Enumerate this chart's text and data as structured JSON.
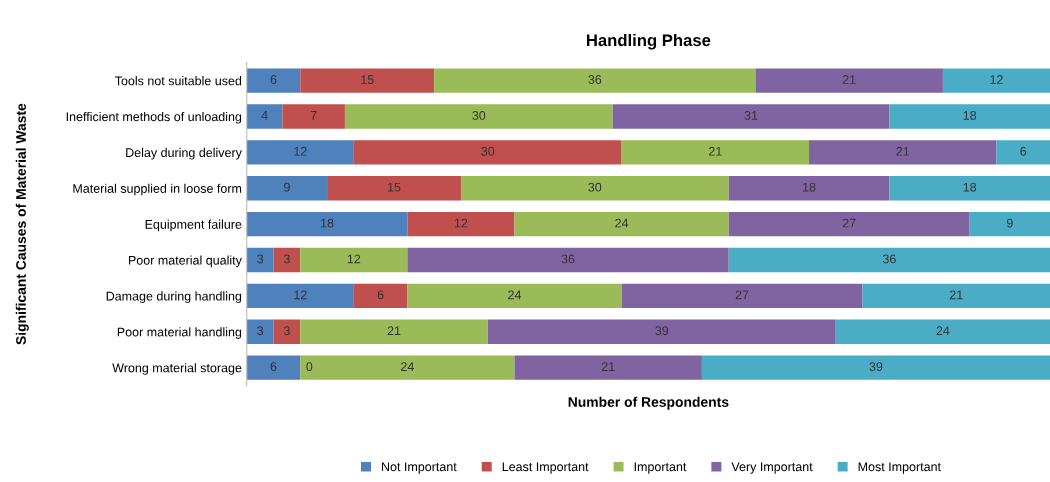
{
  "chart_data": {
    "type": "bar",
    "orientation": "horizontal",
    "stacked": true,
    "title": "Handling Phase",
    "xlabel": "Number of Respondents",
    "ylabel": "Significant Causes of Material Waste",
    "categories": [
      "Tools not suitable used",
      "Inefficient methods of unloading",
      "Delay during delivery",
      "Material supplied in loose form",
      "Equipment failure",
      "Poor material quality",
      "Damage during handling",
      "Poor material handling",
      "Wrong material storage"
    ],
    "series": [
      {
        "name": "Not Important",
        "color": "#4f81bd",
        "values": [
          6,
          4,
          12,
          9,
          18,
          3,
          12,
          3,
          6
        ]
      },
      {
        "name": "Least Important",
        "color": "#c0504d",
        "values": [
          15,
          7,
          30,
          15,
          12,
          3,
          6,
          3,
          0
        ],
        "value_labels": [
          "15",
          "7",
          "30",
          "15",
          "12",
          "3",
          "6",
          "3",
          null
        ]
      },
      {
        "name": "Important",
        "color": "#9bbb59",
        "values": [
          36,
          30,
          21,
          30,
          24,
          12,
          24,
          21,
          24
        ]
      },
      {
        "name": "Very Important",
        "color": "#8064a2",
        "values": [
          21,
          31,
          21,
          18,
          27,
          36,
          27,
          39,
          21
        ]
      },
      {
        "name": "Most Important",
        "color": "#4bacc6",
        "values": [
          12,
          18,
          6,
          18,
          9,
          36,
          21,
          24,
          39
        ]
      }
    ],
    "annotations": [
      {
        "text": "0",
        "x": 6,
        "y": "Wrong material storage"
      }
    ],
    "xlim": [
      0,
      90
    ],
    "data_labels": true,
    "tick_labels": "y",
    "grid": false,
    "legend": "bottom"
  }
}
